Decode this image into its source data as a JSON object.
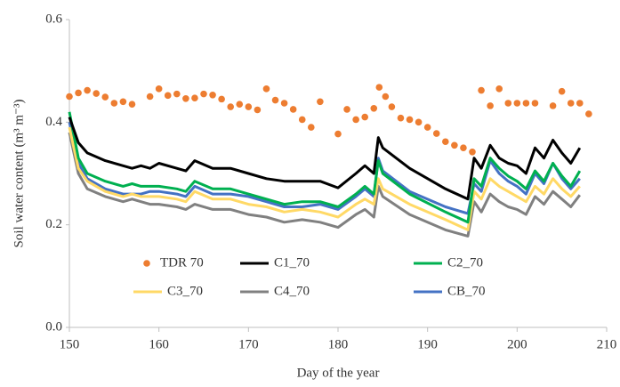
{
  "chart_data": {
    "type": "line",
    "x_label": "Day of the year",
    "y_label": "Soil water content (m³ m⁻³)",
    "xlim": [
      150,
      210
    ],
    "xticks": [
      150,
      160,
      170,
      180,
      190,
      200,
      210
    ],
    "ylim": [
      0,
      0.6
    ],
    "yticks": [
      {
        "value": 0,
        "label": "0.0"
      },
      0.2,
      0.4,
      0.6
    ],
    "grid": false,
    "series": [
      {
        "name": "TDR 70",
        "type": "scatter",
        "color": "#ed7d31",
        "x": [
          150,
          151,
          152,
          153,
          154,
          155,
          156,
          157,
          159,
          160,
          161,
          162,
          163,
          164,
          165,
          166,
          167,
          168,
          169,
          170,
          171,
          172,
          173,
          174,
          175,
          176,
          177,
          178,
          180,
          181,
          182,
          183,
          184,
          184.6,
          185.3,
          186,
          187,
          188,
          189,
          190,
          191,
          192,
          193,
          194,
          195,
          196,
          197,
          198,
          199,
          200,
          201,
          202,
          204,
          205,
          206,
          207,
          208
        ],
        "values": [
          0.45,
          0.457,
          0.462,
          0.456,
          0.449,
          0.437,
          0.44,
          0.435,
          0.45,
          0.465,
          0.452,
          0.455,
          0.446,
          0.447,
          0.455,
          0.453,
          0.445,
          0.43,
          0.435,
          0.43,
          0.424,
          0.465,
          0.443,
          0.437,
          0.425,
          0.405,
          0.39,
          0.44,
          0.377,
          0.425,
          0.405,
          0.41,
          0.427,
          0.468,
          0.45,
          0.43,
          0.408,
          0.405,
          0.4,
          0.39,
          0.378,
          0.362,
          0.355,
          0.35,
          0.342,
          0.462,
          0.432,
          0.465,
          0.437,
          0.437,
          0.437,
          0.437,
          0.432,
          0.46,
          0.437,
          0.437,
          0.416
        ]
      },
      {
        "name": "C1_70",
        "type": "line",
        "color": "#000000",
        "x": [
          150,
          151,
          152,
          154,
          156,
          157,
          158,
          159,
          160,
          162,
          163,
          164,
          166,
          168,
          170,
          172,
          174,
          176,
          178,
          180,
          182,
          183,
          184,
          184.5,
          185,
          188,
          192,
          194.5,
          195.2,
          196,
          197,
          198,
          199,
          200,
          201,
          202,
          203,
          204,
          205,
          206,
          207
        ],
        "values": [
          0.41,
          0.36,
          0.34,
          0.325,
          0.315,
          0.31,
          0.315,
          0.31,
          0.32,
          0.31,
          0.305,
          0.325,
          0.31,
          0.31,
          0.3,
          0.29,
          0.285,
          0.285,
          0.285,
          0.272,
          0.3,
          0.315,
          0.3,
          0.37,
          0.35,
          0.31,
          0.27,
          0.25,
          0.33,
          0.31,
          0.355,
          0.33,
          0.32,
          0.315,
          0.3,
          0.35,
          0.33,
          0.365,
          0.34,
          0.32,
          0.35
        ]
      },
      {
        "name": "C2_70",
        "type": "line",
        "color": "#00b050",
        "x": [
          150,
          151,
          152,
          154,
          156,
          157,
          158,
          159,
          160,
          162,
          163,
          164,
          166,
          168,
          170,
          172,
          174,
          176,
          178,
          180,
          182,
          183,
          184,
          184.5,
          185,
          188,
          192,
          194.5,
          195.2,
          196,
          197,
          198,
          199,
          200,
          201,
          202,
          203,
          204,
          205,
          206,
          207
        ],
        "values": [
          0.42,
          0.33,
          0.3,
          0.285,
          0.275,
          0.28,
          0.275,
          0.275,
          0.275,
          0.27,
          0.265,
          0.285,
          0.27,
          0.27,
          0.26,
          0.25,
          0.24,
          0.245,
          0.245,
          0.235,
          0.26,
          0.275,
          0.26,
          0.325,
          0.3,
          0.26,
          0.225,
          0.205,
          0.29,
          0.275,
          0.33,
          0.31,
          0.295,
          0.285,
          0.27,
          0.305,
          0.285,
          0.32,
          0.295,
          0.275,
          0.305
        ]
      },
      {
        "name": "C3_70",
        "type": "line",
        "color": "#ffd966",
        "x": [
          150,
          151,
          152,
          154,
          156,
          157,
          158,
          159,
          160,
          162,
          163,
          164,
          166,
          168,
          170,
          172,
          174,
          176,
          178,
          180,
          182,
          183,
          184,
          184.5,
          185,
          188,
          192,
          194.5,
          195.2,
          196,
          197,
          198,
          199,
          200,
          201,
          202,
          203,
          204,
          205,
          206,
          207
        ],
        "values": [
          0.39,
          0.31,
          0.285,
          0.265,
          0.255,
          0.26,
          0.255,
          0.255,
          0.255,
          0.25,
          0.245,
          0.265,
          0.25,
          0.25,
          0.24,
          0.235,
          0.225,
          0.23,
          0.225,
          0.215,
          0.24,
          0.25,
          0.24,
          0.29,
          0.27,
          0.24,
          0.21,
          0.19,
          0.265,
          0.25,
          0.29,
          0.275,
          0.265,
          0.255,
          0.245,
          0.275,
          0.26,
          0.29,
          0.27,
          0.255,
          0.275
        ]
      },
      {
        "name": "C4_70",
        "type": "line",
        "color": "#808080",
        "x": [
          150,
          151,
          152,
          154,
          156,
          157,
          158,
          159,
          160,
          162,
          163,
          164,
          166,
          168,
          170,
          172,
          174,
          176,
          178,
          180,
          182,
          183,
          184,
          184.5,
          185,
          188,
          192,
          194.5,
          195.2,
          196,
          197,
          198,
          199,
          200,
          201,
          202,
          203,
          204,
          205,
          206,
          207
        ],
        "values": [
          0.38,
          0.3,
          0.27,
          0.255,
          0.245,
          0.25,
          0.245,
          0.24,
          0.24,
          0.235,
          0.23,
          0.24,
          0.23,
          0.23,
          0.22,
          0.215,
          0.205,
          0.21,
          0.205,
          0.195,
          0.22,
          0.23,
          0.215,
          0.275,
          0.255,
          0.22,
          0.19,
          0.178,
          0.245,
          0.225,
          0.26,
          0.245,
          0.235,
          0.23,
          0.22,
          0.255,
          0.24,
          0.265,
          0.25,
          0.235,
          0.258
        ]
      },
      {
        "name": "CB_70",
        "type": "line",
        "color": "#4472c4",
        "x": [
          150,
          151,
          152,
          154,
          156,
          157,
          158,
          159,
          160,
          162,
          163,
          164,
          166,
          168,
          170,
          172,
          174,
          176,
          178,
          180,
          182,
          183,
          184,
          184.5,
          185,
          188,
          192,
          194.5,
          195.2,
          196,
          197,
          198,
          199,
          200,
          201,
          202,
          203,
          204,
          205,
          206,
          207
        ],
        "values": [
          0.4,
          0.32,
          0.29,
          0.27,
          0.26,
          0.26,
          0.26,
          0.265,
          0.265,
          0.26,
          0.255,
          0.275,
          0.26,
          0.26,
          0.255,
          0.245,
          0.235,
          0.235,
          0.24,
          0.23,
          0.255,
          0.27,
          0.255,
          0.33,
          0.305,
          0.265,
          0.235,
          0.222,
          0.28,
          0.265,
          0.325,
          0.3,
          0.285,
          0.275,
          0.26,
          0.3,
          0.28,
          0.32,
          0.29,
          0.27,
          0.29
        ]
      }
    ]
  }
}
